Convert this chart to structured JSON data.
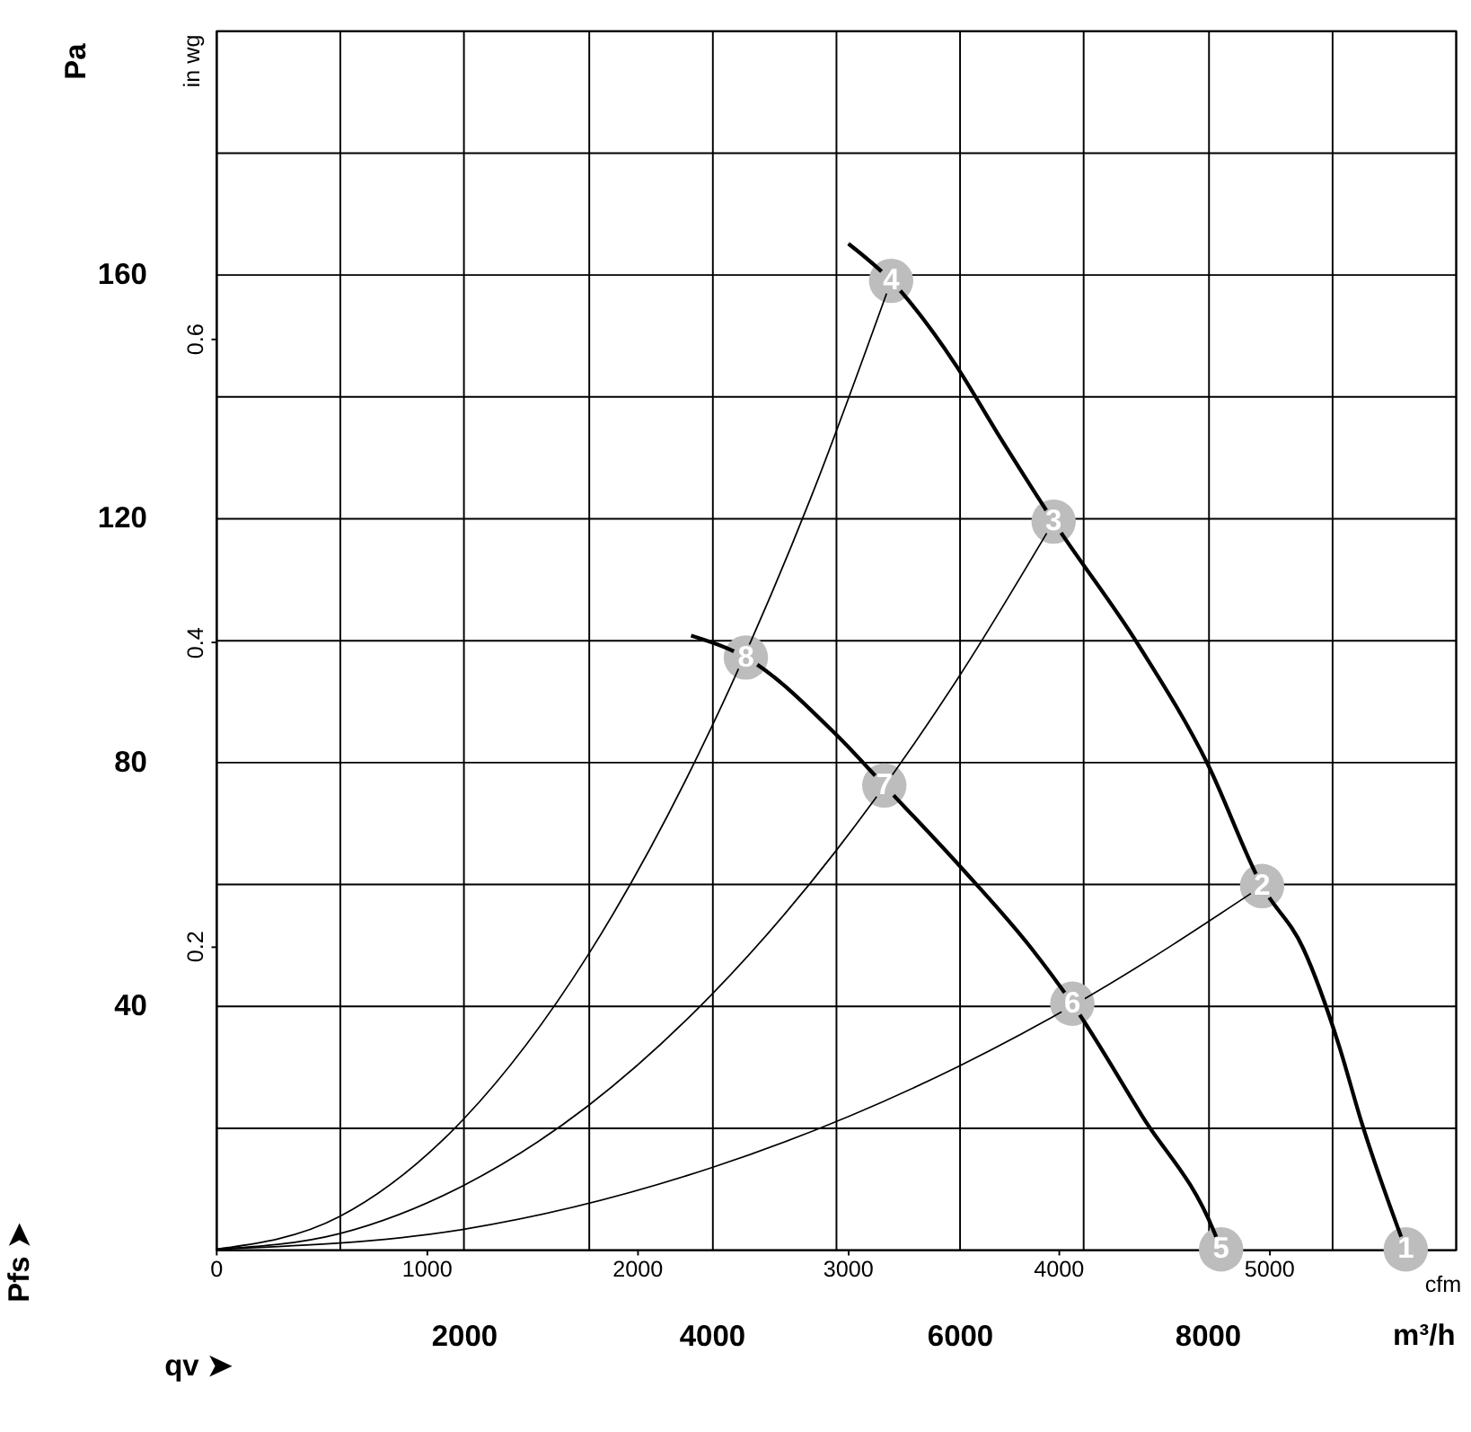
{
  "chart_data": {
    "type": "line",
    "xlabel": "qv ➤",
    "ylabel": "Pfs ➤",
    "x2label": "cfm",
    "y2label": "in wg",
    "xlim": [
      0,
      10000
    ],
    "ylim": [
      0,
      200
    ],
    "xticks": [
      {
        "value": 0,
        "label": null
      },
      {
        "value": 1000,
        "label": null
      },
      2000,
      {
        "value": 3000,
        "label": null
      },
      4000,
      {
        "value": 5000,
        "label": null
      },
      6000,
      {
        "value": 7000,
        "label": null
      },
      8000,
      {
        "value": 9000,
        "label": null
      },
      {
        "value": 10000,
        "label": null
      }
    ],
    "yticks": [
      {
        "value": 0,
        "label": null
      },
      {
        "value": 20,
        "label": null
      },
      40,
      {
        "value": 60,
        "label": null
      },
      80,
      {
        "value": 100,
        "label": null
      },
      120,
      {
        "value": 140,
        "label": null
      },
      160,
      {
        "value": 180,
        "label": null
      },
      {
        "value": 200,
        "label": null
      }
    ],
    "x2lim": [
      0,
      5886
    ],
    "x2ticks": [
      0,
      1000,
      2000,
      3000,
      4000,
      5000
    ],
    "y2lim": [
      0,
      0.803
    ],
    "y2ticks": [
      0.2,
      0.4,
      0.6
    ],
    "grid": true,
    "legend": false,
    "marker": "none",
    "line_style": "solid",
    "series": [
      {
        "color": "#000000",
        "x": [
          5103,
          5448,
          5972,
          6303,
          6759,
          7448,
          8000,
          8441,
          8772,
          9062,
          9241,
          9600
        ],
        "values": [
          165,
          158.9,
          145,
          134,
          119.4,
          99,
          79.7,
          59.6,
          49.4,
          33.4,
          21,
          0
        ]
      },
      {
        "color": "#000000",
        "x": [
          3834,
          4276,
          5007,
          5393,
          6028,
          6579,
          6910,
          7476,
          8055,
          8110
        ],
        "values": [
          100.7,
          97.1,
          84.4,
          76.1,
          62.3,
          49.4,
          40.3,
          21.8,
          2.8,
          0
        ]
      },
      {
        "color": "#000000",
        "x": [
          0,
          1000,
          2000,
          3000,
          4000,
          4800,
          5448
        ],
        "values": [
          0,
          5.4,
          21.4,
          48.2,
          85.7,
          123.3,
          158.9
        ]
      },
      {
        "color": "#000000",
        "x": [
          0,
          1000,
          2000,
          3000,
          4000,
          5000,
          6000,
          6759
        ],
        "values": [
          0,
          2.6,
          10.5,
          23.5,
          41.8,
          65.3,
          94.1,
          119.4
        ]
      },
      {
        "color": "#000000",
        "x": [
          0,
          2000,
          4000,
          6000,
          7000,
          8441
        ],
        "values": [
          0,
          3.3,
          13.4,
          30.1,
          41,
          59.6
        ]
      }
    ],
    "annotations": [
      {
        "text": "1",
        "x": 9600,
        "y": 0
      },
      {
        "text": "2",
        "x": 8441,
        "y": 59.6
      },
      {
        "text": "3",
        "x": 6759,
        "y": 119.4
      },
      {
        "text": "4",
        "x": 5448,
        "y": 158.9
      },
      {
        "text": "5",
        "x": 8110,
        "y": 0
      },
      {
        "text": "6",
        "x": 6910,
        "y": 40.3
      },
      {
        "text": "7",
        "x": 5393,
        "y": 76.1
      },
      {
        "text": "8",
        "x": 4276,
        "y": 97.1
      },
      "Pa",
      "m³/h"
    ]
  }
}
